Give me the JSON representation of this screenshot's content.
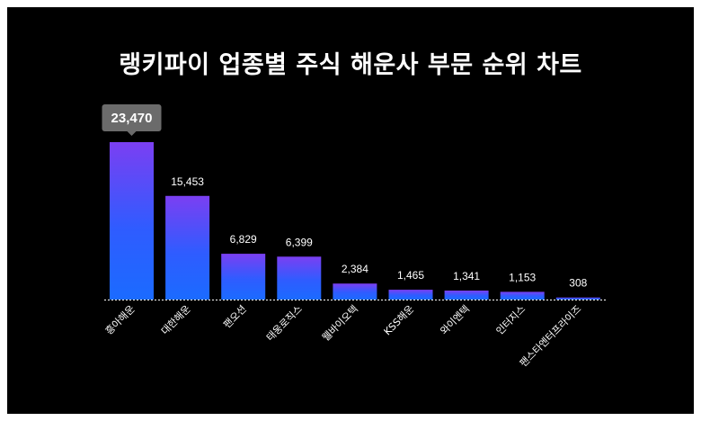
{
  "title": "랭키파이 업종별 주식 해운사 부문 순위 차트",
  "colors": {
    "background": "#000000",
    "bar_top": "#7b3ff2",
    "bar_bottom": "#1b6bff",
    "tooltip": "#6b6b6b",
    "baseline": "#ffffff"
  },
  "chart_data": {
    "type": "bar",
    "title": "랭키파이 업종별 주식 해운사 부문 순위 차트",
    "categories": [
      "흥아해운",
      "대한해운",
      "팬오션",
      "태웅로직스",
      "웰바이오텍",
      "KSS해운",
      "와이엔텍",
      "인터지스",
      "팬스타엔터프라이즈"
    ],
    "values": [
      23470,
      15453,
      6829,
      6399,
      2384,
      1465,
      1341,
      1153,
      308
    ],
    "value_labels": [
      "23,470",
      "15,453",
      "6,829",
      "6,399",
      "2,384",
      "1,465",
      "1,341",
      "1,153",
      "308"
    ],
    "highlighted_index": 0,
    "xlabel": "",
    "ylabel": "",
    "ylim": [
      0,
      23470
    ],
    "grid": false,
    "legend": "none"
  }
}
